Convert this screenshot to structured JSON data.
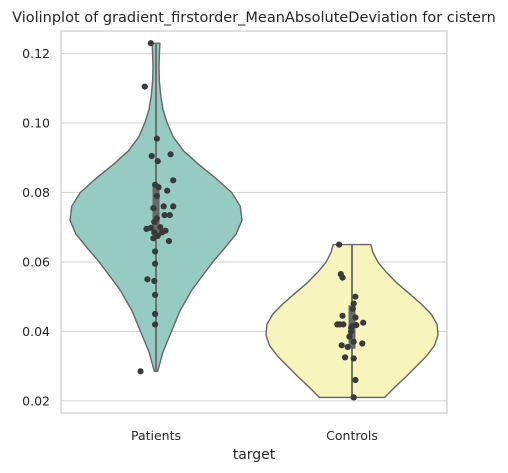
{
  "chart_data": {
    "type": "violin",
    "title": "Violinplot of gradient_firstorder_MeanAbsoluteDeviation for cistern",
    "xlabel": "target",
    "ylabel": "",
    "categories": [
      "Patients",
      "Controls"
    ],
    "ylim": [
      0.0165,
      0.1265
    ],
    "yticks": [
      0.02,
      0.04,
      0.06,
      0.08,
      0.1,
      0.12
    ],
    "ytick_labels": [
      "0.02",
      "0.04",
      "0.06",
      "0.08",
      "0.10",
      "0.12"
    ],
    "grid": "horizontal",
    "violins": [
      {
        "category": "Patients",
        "color": "#96cbc1",
        "min": 0.0285,
        "max": 0.123,
        "q1": 0.068,
        "median": 0.0715,
        "q3": 0.0825,
        "profile": [
          [
            0.0285,
            0.02
          ],
          [
            0.034,
            0.08
          ],
          [
            0.04,
            0.18
          ],
          [
            0.046,
            0.28
          ],
          [
            0.052,
            0.42
          ],
          [
            0.056,
            0.54
          ],
          [
            0.06,
            0.66
          ],
          [
            0.064,
            0.8
          ],
          [
            0.068,
            0.93
          ],
          [
            0.072,
            1.0
          ],
          [
            0.076,
            0.98
          ],
          [
            0.08,
            0.88
          ],
          [
            0.084,
            0.7
          ],
          [
            0.088,
            0.5
          ],
          [
            0.092,
            0.32
          ],
          [
            0.096,
            0.2
          ],
          [
            0.1,
            0.13
          ],
          [
            0.104,
            0.08
          ],
          [
            0.108,
            0.055
          ],
          [
            0.112,
            0.04
          ],
          [
            0.116,
            0.035
          ],
          [
            0.12,
            0.04
          ],
          [
            0.123,
            0.045
          ]
        ],
        "points": [
          [
            0.123,
            -0.06
          ],
          [
            0.1105,
            -0.13
          ],
          [
            0.0955,
            0.01
          ],
          [
            0.091,
            0.17
          ],
          [
            0.0905,
            -0.05
          ],
          [
            0.089,
            0.02
          ],
          [
            0.0835,
            0.2
          ],
          [
            0.0822,
            -0.01
          ],
          [
            0.0815,
            0.03
          ],
          [
            0.0805,
            0.13
          ],
          [
            0.079,
            0.01
          ],
          [
            0.076,
            0.2
          ],
          [
            0.076,
            0.09
          ],
          [
            0.0755,
            -0.03
          ],
          [
            0.0735,
            0.16
          ],
          [
            0.0735,
            0.1
          ],
          [
            0.0725,
            0.01
          ],
          [
            0.0715,
            -0.02
          ],
          [
            0.07,
            0.05
          ],
          [
            0.0698,
            -0.06
          ],
          [
            0.0695,
            -0.11
          ],
          [
            0.069,
            0.11
          ],
          [
            0.0685,
            -0.02
          ],
          [
            0.0685,
            0.07
          ],
          [
            0.0675,
            0.02
          ],
          [
            0.0668,
            -0.03
          ],
          [
            0.066,
            0.15
          ],
          [
            0.063,
            -0.01
          ],
          [
            0.0595,
            -0.01
          ],
          [
            0.055,
            -0.1
          ],
          [
            0.0545,
            -0.02
          ],
          [
            0.0505,
            -0.01
          ],
          [
            0.045,
            -0.01
          ],
          [
            0.042,
            -0.01
          ],
          [
            0.0285,
            -0.18
          ]
        ]
      },
      {
        "category": "Controls",
        "color": "#f7f5bb",
        "min": 0.021,
        "max": 0.065,
        "q1": 0.035,
        "median": 0.0405,
        "q3": 0.0475,
        "profile": [
          [
            0.021,
            0.38
          ],
          [
            0.024,
            0.5
          ],
          [
            0.027,
            0.63
          ],
          [
            0.03,
            0.75
          ],
          [
            0.033,
            0.87
          ],
          [
            0.036,
            0.96
          ],
          [
            0.039,
            1.0
          ],
          [
            0.042,
            0.99
          ],
          [
            0.045,
            0.92
          ],
          [
            0.048,
            0.8
          ],
          [
            0.051,
            0.66
          ],
          [
            0.054,
            0.52
          ],
          [
            0.057,
            0.4
          ],
          [
            0.06,
            0.3
          ],
          [
            0.063,
            0.24
          ],
          [
            0.065,
            0.22
          ]
        ],
        "points": [
          [
            0.065,
            -0.15
          ],
          [
            0.0565,
            -0.13
          ],
          [
            0.0555,
            -0.11
          ],
          [
            0.05,
            0.04
          ],
          [
            0.048,
            0.02
          ],
          [
            0.0465,
            0.01
          ],
          [
            0.0445,
            -0.11
          ],
          [
            0.044,
            0.04
          ],
          [
            0.0425,
            0.13
          ],
          [
            0.042,
            -0.17
          ],
          [
            0.042,
            -0.14
          ],
          [
            0.042,
            -0.1
          ],
          [
            0.0418,
            0.05
          ],
          [
            0.0415,
            0.0
          ],
          [
            0.041,
            -0.01
          ],
          [
            0.04,
            -0.01
          ],
          [
            0.0385,
            -0.03
          ],
          [
            0.037,
            0.02
          ],
          [
            0.0365,
            0.12
          ],
          [
            0.036,
            -0.12
          ],
          [
            0.0355,
            -0.05
          ],
          [
            0.0325,
            -0.08
          ],
          [
            0.0322,
            0.02
          ],
          [
            0.026,
            0.04
          ],
          [
            0.021,
            0.02
          ]
        ]
      }
    ],
    "colors": {
      "edge": "#666666",
      "box": "#686868",
      "point": "#3a3a3a",
      "grid": "#d6d6d6",
      "frame": "#cccccc"
    }
  }
}
